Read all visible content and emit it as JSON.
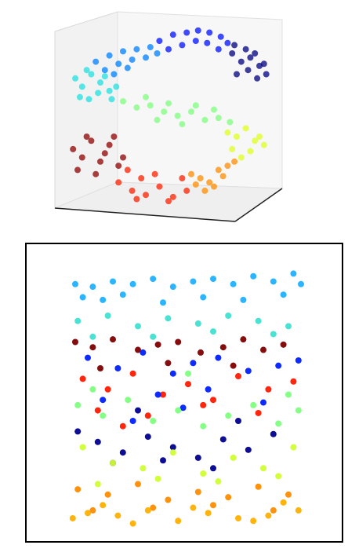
{
  "chart_data": [
    {
      "type": "scatter",
      "xlim": [
        0,
        100
      ],
      "ylim": [
        0,
        100
      ],
      "series": [
        {
          "color": "#00007f",
          "x": [
            78,
            82,
            86,
            90,
            93,
            80,
            85,
            89,
            92,
            84,
            88,
            79
          ],
          "values": [
            80,
            76,
            78,
            74,
            70,
            70,
            72,
            68,
            75,
            82,
            80,
            84
          ]
        },
        {
          "color": "#0010ff",
          "x": [
            46,
            52,
            58,
            63,
            68,
            73,
            76,
            50,
            56,
            62,
            67,
            72
          ],
          "values": [
            86,
            89,
            90,
            91,
            90,
            88,
            85,
            82,
            84,
            86,
            85,
            82
          ]
        },
        {
          "color": "#0080ff",
          "x": [
            18,
            24,
            30,
            36,
            42,
            22,
            28,
            34,
            40,
            45,
            32,
            26
          ],
          "values": [
            76,
            79,
            81,
            82,
            83,
            72,
            75,
            77,
            78,
            80,
            73,
            70
          ]
        },
        {
          "color": "#20e0e0",
          "x": [
            9,
            12,
            16,
            20,
            24,
            11,
            15,
            19,
            25,
            14,
            22,
            27
          ],
          "values": [
            68,
            64,
            70,
            66,
            62,
            59,
            58,
            61,
            58,
            72,
            69,
            64
          ]
        },
        {
          "color": "#7fff7f",
          "x": [
            30,
            36,
            42,
            48,
            54,
            60,
            66,
            72,
            77,
            40,
            50,
            62,
            70,
            45,
            56
          ],
          "values": [
            57,
            54,
            55,
            52,
            50,
            52,
            48,
            49,
            47,
            59,
            56,
            55,
            53,
            48,
            46
          ]
        },
        {
          "color": "#e0ff20",
          "x": [
            76,
            80,
            84,
            88,
            92,
            78,
            86,
            90,
            82
          ],
          "values": [
            42,
            40,
            44,
            38,
            36,
            34,
            33,
            40,
            30
          ]
        },
        {
          "color": "#ff8c00",
          "x": [
            60,
            64,
            68,
            72,
            76,
            79,
            66,
            70,
            74,
            62
          ],
          "values": [
            22,
            20,
            18,
            24,
            26,
            28,
            14,
            16,
            21,
            17
          ]
        },
        {
          "color": "#ff2000",
          "x": [
            28,
            34,
            40,
            46,
            52,
            58,
            32,
            38,
            44,
            50,
            56,
            36
          ],
          "values": [
            18,
            14,
            12,
            16,
            11,
            14,
            24,
            20,
            22,
            9,
            20,
            10
          ]
        },
        {
          "color": "#8f0000",
          "x": [
            8,
            12,
            16,
            20,
            24,
            28,
            10,
            14,
            18,
            22,
            26,
            30
          ],
          "values": [
            34,
            30,
            38,
            28,
            36,
            26,
            24,
            40,
            22,
            32,
            40,
            30
          ]
        }
      ]
    },
    {
      "type": "scatter",
      "xlim": [
        0,
        100
      ],
      "ylim": [
        0,
        100
      ],
      "series": [
        {
          "color": "#20b0ff",
          "x": [
            5,
            12,
            20,
            28,
            36,
            44,
            52,
            60,
            68,
            76,
            84,
            92,
            95,
            8,
            16,
            24,
            40,
            56,
            72,
            88
          ],
          "values": [
            92,
            91,
            93,
            92,
            94,
            91,
            93,
            94,
            92,
            95,
            93,
            96,
            92,
            87,
            86,
            88,
            85,
            87,
            86,
            88
          ]
        },
        {
          "color": "#40e0d0",
          "x": [
            6,
            18,
            30,
            42,
            54,
            66,
            78,
            90,
            12,
            36,
            60,
            84
          ],
          "values": [
            78,
            80,
            76,
            79,
            77,
            80,
            78,
            76,
            72,
            72,
            74,
            73
          ]
        },
        {
          "color": "#800000",
          "x": [
            5,
            12,
            20,
            30,
            38,
            46,
            55,
            64,
            72,
            80,
            88,
            15,
            42,
            68
          ],
          "values": [
            70,
            68,
            71,
            67,
            69,
            70,
            66,
            68,
            71,
            67,
            69,
            60,
            62,
            61
          ]
        },
        {
          "color": "#ff1a00",
          "x": [
            8,
            18,
            28,
            40,
            50,
            60,
            70,
            82,
            92,
            14,
            34,
            56,
            78,
            24
          ],
          "values": [
            56,
            52,
            58,
            50,
            54,
            48,
            57,
            52,
            55,
            44,
            42,
            46,
            43,
            38
          ]
        },
        {
          "color": "#0020ff",
          "x": [
            10,
            22,
            32,
            44,
            52,
            62,
            74,
            86,
            94,
            16,
            38,
            58,
            80,
            28,
            48
          ],
          "values": [
            64,
            60,
            66,
            58,
            62,
            64,
            59,
            61,
            63,
            48,
            50,
            52,
            47,
            40,
            45
          ]
        },
        {
          "color": "#00008f",
          "x": [
            6,
            14,
            24,
            34,
            44,
            54,
            64,
            74,
            84,
            20,
            40,
            60,
            70,
            30
          ],
          "values": [
            36,
            32,
            28,
            34,
            30,
            26,
            33,
            29,
            35,
            24,
            25,
            22,
            40,
            44
          ]
        },
        {
          "color": "#80ff80",
          "x": [
            6,
            16,
            26,
            36,
            46,
            56,
            66,
            76,
            86,
            94,
            12,
            50,
            90
          ],
          "values": [
            46,
            42,
            48,
            40,
            44,
            38,
            42,
            46,
            39,
            44,
            52,
            58,
            50
          ]
        },
        {
          "color": "#d0ff30",
          "x": [
            8,
            20,
            32,
            44,
            56,
            68,
            80,
            92,
            14,
            38,
            62,
            86
          ],
          "values": [
            30,
            24,
            22,
            28,
            20,
            26,
            22,
            30,
            16,
            18,
            17,
            19
          ]
        },
        {
          "color": "#ff8c00",
          "x": [
            6,
            18,
            30,
            42,
            54,
            66,
            78,
            90,
            12,
            36,
            60,
            84
          ],
          "values": [
            14,
            12,
            16,
            10,
            13,
            11,
            15,
            12,
            6,
            7,
            8,
            6
          ]
        },
        {
          "color": "#ffb000",
          "x": [
            4,
            10,
            22,
            34,
            46,
            58,
            70,
            82,
            94,
            16,
            28,
            52,
            76,
            88
          ],
          "values": [
            3,
            5,
            4,
            6,
            2,
            5,
            3,
            4,
            6,
            8,
            1,
            7,
            2,
            9
          ]
        }
      ]
    }
  ]
}
